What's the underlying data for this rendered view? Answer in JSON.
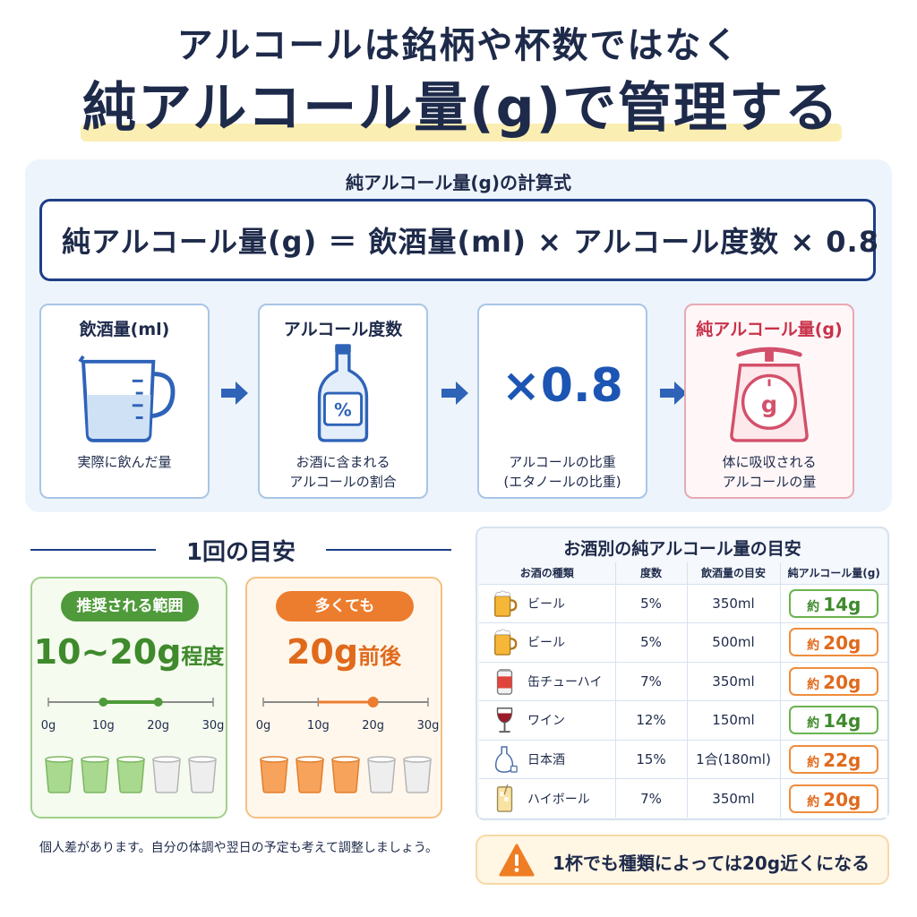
{
  "header": {
    "line1": "アルコールは銘柄や杯数ではなく",
    "line2": "純アルコール量(g)で管理する"
  },
  "formula": {
    "caption": "純アルコール量(g)の計算式",
    "expression": "純アルコール量(g) ＝ 飲酒量(ml) × アルコール度数 × 0.8"
  },
  "steps": [
    {
      "title": "飲酒量(ml)",
      "desc": "実際に飲んだ量",
      "icon": "measuring-cup-icon"
    },
    {
      "title": "アルコール度数",
      "desc": "お酒に含まれる\nアルコールの割合",
      "icon": "bottle-percent-icon",
      "icon_text": "%"
    },
    {
      "title": "",
      "desc": "アルコールの比重\n(エタノールの比重)",
      "big": "×0.8"
    },
    {
      "title": "純アルコール量(g)",
      "desc": "体に吸収される\nアルコールの量",
      "icon": "scale-icon",
      "icon_text": "g"
    }
  ],
  "guide": {
    "section_title": "1回の目安",
    "recommended": {
      "label": "推奨される範囲",
      "value": "10~20g",
      "suffix": "程度",
      "range": [
        10,
        20
      ],
      "filled_cups": 3
    },
    "max": {
      "label": "多くても",
      "value": "20g",
      "suffix": "前後",
      "marker": 20,
      "filled_cups": 3
    },
    "scale_ticks": [
      "0g",
      "10g",
      "20g",
      "30g"
    ],
    "total_cups": 5,
    "colors": {
      "green": "#4f9a3a",
      "orange": "#ec7d2e"
    }
  },
  "footnote": "個人差があります。自分の体調や翌日の予定も考えて調整しましょう。",
  "table": {
    "title": "お酒別の純アルコール量の目安",
    "headers": [
      "お酒の種類",
      "度数",
      "飲酒量の目安",
      "純アルコール量(g)"
    ],
    "approx_prefix": "約",
    "rows": [
      {
        "name": "ビール",
        "abv": "5%",
        "amount": "350ml",
        "grams": "14g",
        "level": "green",
        "icon": "beer-mug-icon"
      },
      {
        "name": "ビール",
        "abv": "5%",
        "amount": "500ml",
        "grams": "20g",
        "level": "orange",
        "icon": "beer-mug-icon"
      },
      {
        "name": "缶チューハイ",
        "abv": "7%",
        "amount": "350ml",
        "grams": "20g",
        "level": "orange",
        "icon": "can-icon"
      },
      {
        "name": "ワイン",
        "abv": "12%",
        "amount": "150ml",
        "grams": "14g",
        "level": "green",
        "icon": "wine-glass-icon"
      },
      {
        "name": "日本酒",
        "abv": "15%",
        "amount": "1合(180ml)",
        "grams": "22g",
        "level": "orange",
        "icon": "sake-icon"
      },
      {
        "name": "ハイボール",
        "abv": "7%",
        "amount": "350ml",
        "grams": "20g",
        "level": "orange",
        "icon": "highball-icon"
      }
    ]
  },
  "warning": {
    "icon": "warning-icon",
    "text": "1杯でも種類によっては20g近くになる"
  }
}
